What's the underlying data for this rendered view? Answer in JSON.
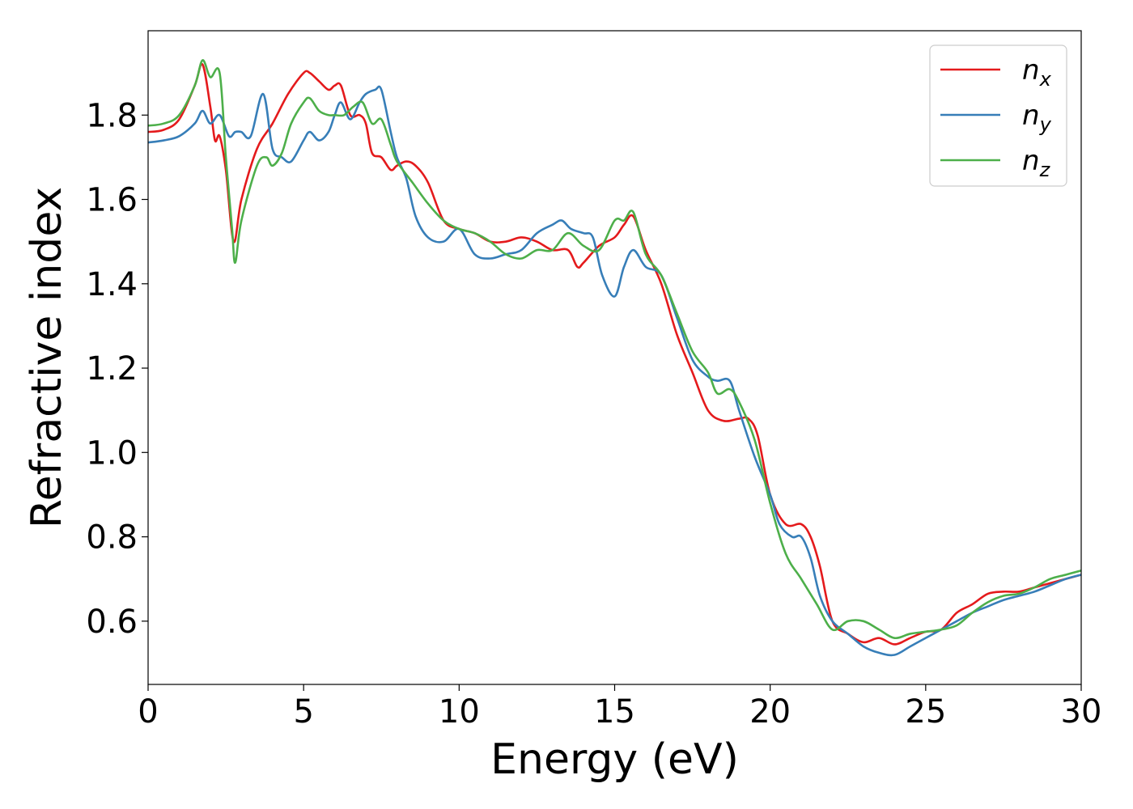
{
  "chart_data": {
    "type": "line",
    "title": "",
    "xlabel": "Energy (eV)",
    "ylabel": "Refractive index",
    "xlim": [
      0,
      30
    ],
    "ylim": [
      0.45,
      2.0
    ],
    "xticks": [
      0,
      5,
      10,
      15,
      20,
      25,
      30
    ],
    "yticks": [
      0.6,
      0.8,
      1.0,
      1.2,
      1.4,
      1.6,
      1.8
    ],
    "xtick_labels": [
      "0",
      "5",
      "10",
      "15",
      "20",
      "25",
      "30"
    ],
    "ytick_labels": [
      "0.6",
      "0.8",
      "1.0",
      "1.2",
      "1.4",
      "1.6",
      "1.8"
    ],
    "grid": false,
    "legend_position": "top-right",
    "series": [
      {
        "name": "n",
        "subscript": "x",
        "color": "#e41a1c",
        "x": [
          0,
          0.5,
          1.0,
          1.5,
          1.75,
          2.0,
          2.15,
          2.3,
          2.5,
          2.75,
          3.0,
          3.5,
          4.0,
          4.5,
          5.0,
          5.2,
          5.5,
          5.8,
          6.0,
          6.2,
          6.5,
          6.8,
          7.0,
          7.2,
          7.5,
          7.8,
          8.0,
          8.3,
          8.6,
          9.0,
          9.5,
          10.0,
          10.5,
          11.0,
          11.5,
          12.0,
          12.5,
          13.0,
          13.5,
          13.8,
          14.0,
          14.5,
          15.0,
          15.3,
          15.6,
          16.0,
          16.5,
          17.0,
          17.5,
          18.0,
          18.5,
          19.0,
          19.3,
          19.6,
          20.0,
          20.5,
          21.0,
          21.3,
          21.6,
          22.0,
          22.5,
          23.0,
          23.5,
          24.0,
          24.5,
          25.0,
          25.5,
          26.0,
          26.5,
          27.0,
          27.5,
          28.0,
          28.5,
          29.0,
          29.5,
          30.0
        ],
        "y": [
          1.76,
          1.765,
          1.79,
          1.87,
          1.92,
          1.82,
          1.74,
          1.75,
          1.67,
          1.5,
          1.6,
          1.72,
          1.78,
          1.85,
          1.9,
          1.9,
          1.88,
          1.86,
          1.87,
          1.87,
          1.8,
          1.8,
          1.78,
          1.71,
          1.7,
          1.67,
          1.68,
          1.69,
          1.68,
          1.64,
          1.55,
          1.53,
          1.52,
          1.5,
          1.5,
          1.51,
          1.5,
          1.48,
          1.48,
          1.44,
          1.45,
          1.49,
          1.51,
          1.54,
          1.56,
          1.48,
          1.4,
          1.28,
          1.19,
          1.1,
          1.075,
          1.08,
          1.08,
          1.04,
          0.9,
          0.83,
          0.83,
          0.8,
          0.73,
          0.6,
          0.57,
          0.55,
          0.56,
          0.545,
          0.56,
          0.575,
          0.58,
          0.62,
          0.64,
          0.665,
          0.67,
          0.67,
          0.68,
          0.69,
          0.7,
          0.71
        ]
      },
      {
        "name": "n",
        "subscript": "y",
        "color": "#377eb8",
        "x": [
          0,
          0.5,
          1.0,
          1.5,
          1.75,
          2.0,
          2.3,
          2.6,
          2.8,
          3.0,
          3.3,
          3.7,
          4.0,
          4.3,
          4.6,
          5.0,
          5.2,
          5.5,
          5.8,
          6.0,
          6.2,
          6.5,
          6.8,
          7.0,
          7.3,
          7.5,
          7.8,
          8.0,
          8.3,
          8.6,
          9.0,
          9.5,
          10.0,
          10.5,
          11.0,
          11.5,
          12.0,
          12.5,
          13.0,
          13.3,
          13.6,
          14.0,
          14.3,
          14.6,
          15.0,
          15.3,
          15.6,
          16.0,
          16.5,
          17.0,
          17.5,
          18.0,
          18.3,
          18.7,
          19.0,
          19.5,
          20.0,
          20.3,
          20.7,
          21.0,
          21.3,
          21.6,
          22.0,
          22.5,
          23.0,
          23.5,
          24.0,
          24.5,
          25.0,
          25.5,
          26.0,
          26.5,
          27.0,
          27.5,
          28.0,
          28.5,
          29.0,
          29.5,
          30.0
        ],
        "y": [
          1.735,
          1.74,
          1.75,
          1.78,
          1.81,
          1.78,
          1.8,
          1.75,
          1.76,
          1.76,
          1.75,
          1.85,
          1.72,
          1.7,
          1.69,
          1.74,
          1.76,
          1.74,
          1.76,
          1.8,
          1.83,
          1.79,
          1.83,
          1.85,
          1.86,
          1.86,
          1.76,
          1.7,
          1.65,
          1.56,
          1.51,
          1.5,
          1.53,
          1.47,
          1.46,
          1.47,
          1.48,
          1.52,
          1.54,
          1.55,
          1.53,
          1.52,
          1.51,
          1.42,
          1.37,
          1.44,
          1.48,
          1.44,
          1.42,
          1.32,
          1.22,
          1.18,
          1.17,
          1.17,
          1.1,
          0.99,
          0.9,
          0.83,
          0.8,
          0.8,
          0.75,
          0.66,
          0.6,
          0.57,
          0.54,
          0.525,
          0.52,
          0.54,
          0.56,
          0.58,
          0.6,
          0.62,
          0.635,
          0.65,
          0.66,
          0.67,
          0.685,
          0.7,
          0.71
        ]
      },
      {
        "name": "n",
        "subscript": "z",
        "color": "#4daf4a",
        "x": [
          0,
          0.5,
          1.0,
          1.5,
          1.75,
          2.0,
          2.3,
          2.5,
          2.7,
          2.8,
          3.0,
          3.5,
          3.8,
          4.0,
          4.3,
          4.6,
          5.0,
          5.2,
          5.5,
          5.8,
          6.0,
          6.3,
          6.6,
          6.9,
          7.2,
          7.5,
          7.8,
          8.0,
          8.5,
          9.0,
          9.5,
          10.0,
          10.5,
          11.0,
          11.5,
          12.0,
          12.5,
          13.0,
          13.5,
          14.0,
          14.5,
          15.0,
          15.3,
          15.6,
          16.0,
          16.5,
          17.0,
          17.5,
          18.0,
          18.3,
          18.7,
          19.0,
          19.5,
          20.0,
          20.5,
          21.0,
          21.5,
          22.0,
          22.5,
          23.0,
          23.5,
          24.0,
          24.5,
          25.0,
          25.5,
          26.0,
          26.5,
          27.0,
          27.5,
          28.0,
          28.5,
          29.0,
          29.5,
          30.0
        ],
        "y": [
          1.775,
          1.78,
          1.8,
          1.87,
          1.93,
          1.89,
          1.9,
          1.7,
          1.53,
          1.45,
          1.55,
          1.68,
          1.7,
          1.68,
          1.71,
          1.78,
          1.83,
          1.84,
          1.81,
          1.8,
          1.8,
          1.8,
          1.82,
          1.83,
          1.78,
          1.79,
          1.73,
          1.69,
          1.64,
          1.59,
          1.55,
          1.53,
          1.52,
          1.5,
          1.47,
          1.46,
          1.48,
          1.48,
          1.52,
          1.49,
          1.48,
          1.55,
          1.55,
          1.57,
          1.47,
          1.42,
          1.33,
          1.24,
          1.19,
          1.14,
          1.15,
          1.12,
          1.03,
          0.88,
          0.76,
          0.7,
          0.64,
          0.58,
          0.6,
          0.6,
          0.58,
          0.56,
          0.57,
          0.575,
          0.58,
          0.59,
          0.62,
          0.645,
          0.66,
          0.665,
          0.68,
          0.7,
          0.71,
          0.72
        ]
      }
    ]
  }
}
